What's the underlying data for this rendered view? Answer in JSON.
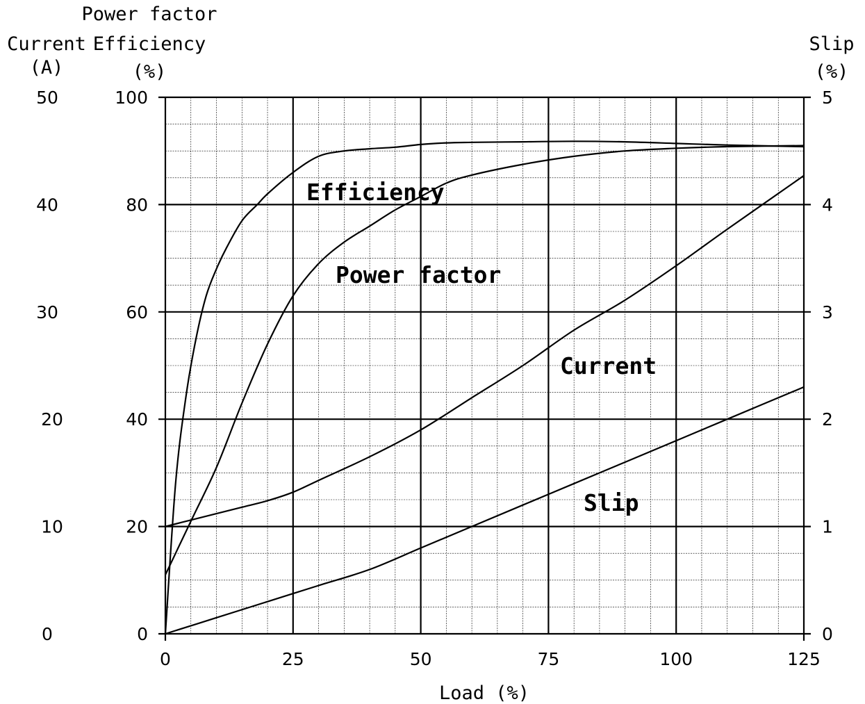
{
  "chart_data": {
    "type": "line",
    "axis_titles": {
      "left_outer": [
        "Current",
        "(A)"
      ],
      "left_inner": [
        "Power factor",
        "Efficiency",
        "(%)"
      ],
      "right": [
        "Slip",
        "(%)"
      ],
      "x": "Load (%)"
    },
    "x_ticks": [
      "0",
      "25",
      "50",
      "75",
      "100",
      "125"
    ],
    "y_current_ticks": [
      "0",
      "10",
      "20",
      "30",
      "40",
      "50"
    ],
    "y_percent_ticks": [
      "0",
      "20",
      "40",
      "60",
      "80",
      "100"
    ],
    "y_slip_ticks": [
      "0",
      "1",
      "2",
      "3",
      "4",
      "5"
    ],
    "xlim": [
      0,
      125
    ],
    "ylim_percent": [
      0,
      100
    ],
    "ylim_current": [
      0,
      50
    ],
    "ylim_slip": [
      0,
      5
    ],
    "grid": true,
    "series": [
      {
        "name": "Efficiency",
        "axis": "percent",
        "x": [
          0,
          2,
          4,
          6,
          8,
          10,
          12,
          15,
          18,
          20,
          25,
          30,
          35,
          40,
          45,
          50,
          55,
          60,
          70,
          80,
          90,
          100,
          110,
          125
        ],
        "y": [
          0,
          28,
          44,
          55,
          63,
          68,
          72,
          77,
          80,
          82,
          86,
          89,
          90,
          90.4,
          90.7,
          91.2,
          91.5,
          91.6,
          91.7,
          91.8,
          91.7,
          91.4,
          91.1,
          90.8
        ]
      },
      {
        "name": "Power factor",
        "axis": "percent",
        "x": [
          0,
          5,
          10,
          15,
          20,
          25,
          30,
          35,
          40,
          45,
          50,
          55,
          60,
          70,
          80,
          90,
          100,
          110,
          125
        ],
        "y": [
          11,
          21,
          31,
          43,
          54,
          63,
          69,
          73,
          76,
          79,
          81.5,
          84,
          85.5,
          87.5,
          89,
          90,
          90.5,
          90.8,
          91
        ]
      },
      {
        "name": "Current",
        "axis": "current",
        "x": [
          0,
          5,
          10,
          15,
          20,
          25,
          30,
          40,
          50,
          60,
          70,
          80,
          90,
          100,
          110,
          125
        ],
        "y": [
          10,
          10.6,
          11.2,
          11.8,
          12.4,
          13.2,
          14.3,
          16.5,
          19,
          22,
          25,
          28.3,
          31.1,
          34.3,
          37.7,
          42.7
        ]
      },
      {
        "name": "Slip",
        "axis": "slip",
        "x": [
          0,
          10,
          20,
          30,
          40,
          50,
          60,
          70,
          80,
          90,
          100,
          110,
          125
        ],
        "y": [
          0,
          0.15,
          0.3,
          0.45,
          0.6,
          0.8,
          1.0,
          1.2,
          1.4,
          1.6,
          1.8,
          2.0,
          2.3
        ]
      }
    ]
  },
  "curve_labels": {
    "efficiency": "Efficiency",
    "power_factor": "Power factor",
    "current": "Current",
    "slip": "Slip"
  }
}
